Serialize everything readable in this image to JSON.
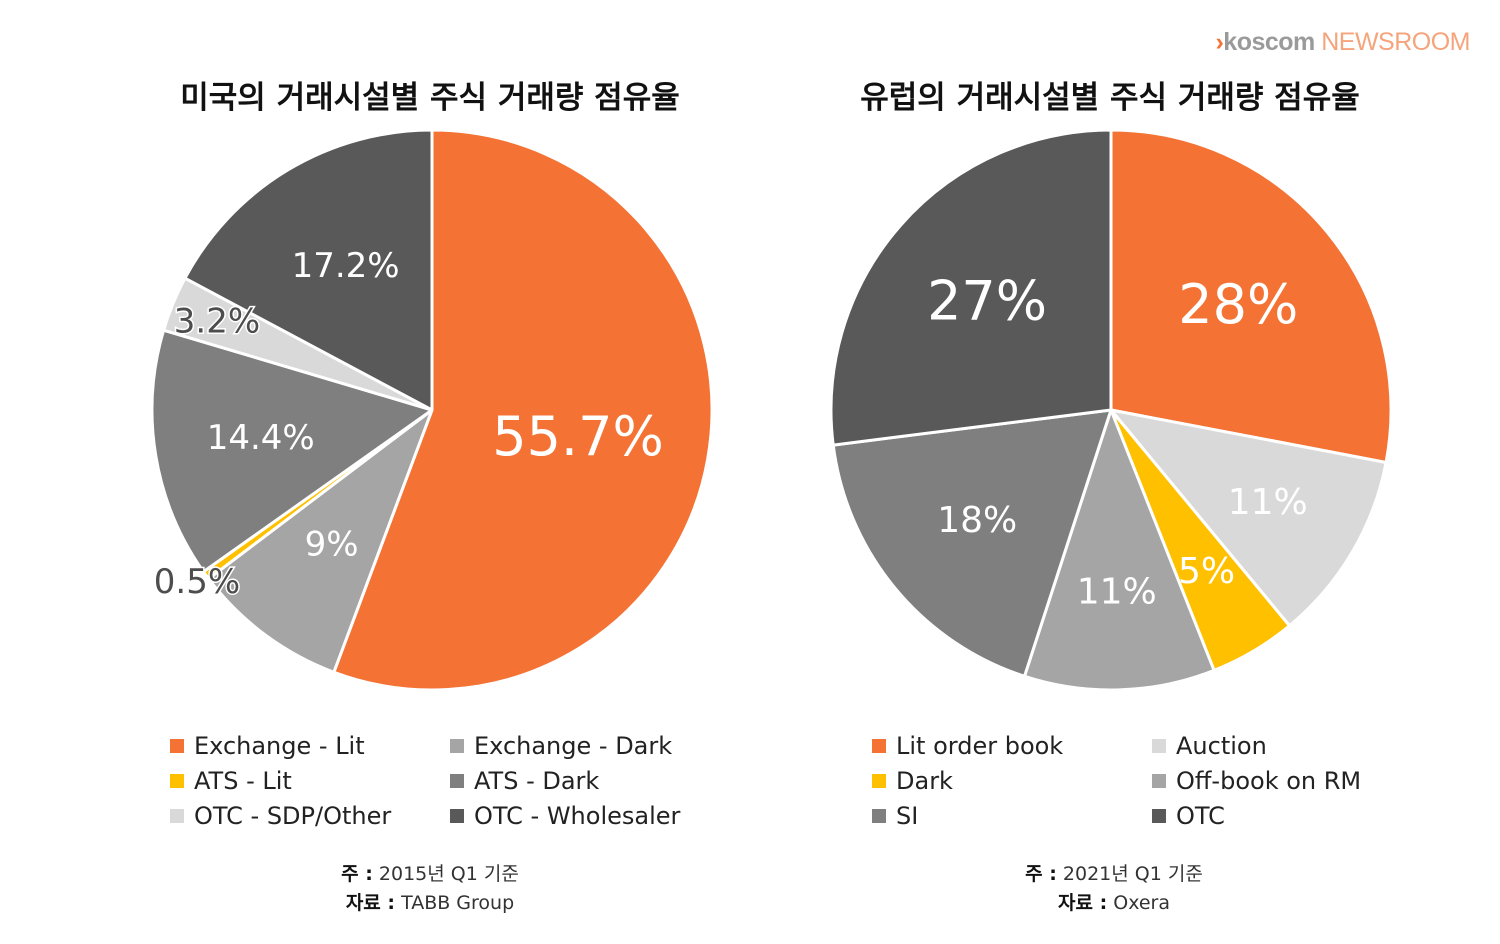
{
  "brand": {
    "prefix": "›",
    "name": "koscom",
    "suffix": " NEWSROOM"
  },
  "chart_data": [
    {
      "type": "pie",
      "title": "미국의 거래시설별 주식 거래량 점유율",
      "slices": [
        {
          "name": "Exchange - Lit",
          "value": 55.7,
          "label": "55.7%",
          "color": "#f37234"
        },
        {
          "name": "Exchange - Dark",
          "value": 9,
          "label": "9%",
          "color": "#a5a5a5"
        },
        {
          "name": "ATS - Lit",
          "value": 0.5,
          "label": "0.5%",
          "color": "#ffc000"
        },
        {
          "name": "ATS - Dark",
          "value": 14.4,
          "label": "14.4%",
          "color": "#7f7f7f"
        },
        {
          "name": "OTC - SDP/Other",
          "value": 3.2,
          "label": "3.2%",
          "color": "#d9d9d9"
        },
        {
          "name": "OTC - Wholesaler",
          "value": 17.2,
          "label": "17.2%",
          "color": "#595959"
        }
      ],
      "legend": [
        {
          "name": "Exchange - Lit",
          "color": "#f37234"
        },
        {
          "name": "Exchange - Dark",
          "color": "#a5a5a5"
        },
        {
          "name": "ATS - Lit",
          "color": "#ffc000"
        },
        {
          "name": "ATS - Dark",
          "color": "#7f7f7f"
        },
        {
          "name": "OTC - SDP/Other",
          "color": "#d9d9d9"
        },
        {
          "name": "OTC - Wholesaler",
          "color": "#595959"
        }
      ],
      "note": {
        "label_1": "주 :",
        "text_1": "2015년 Q1 기준",
        "label_2": "자료 :",
        "text_2": "TABB Group"
      }
    },
    {
      "type": "pie",
      "title": "유럽의 거래시설별 주식 거래량 점유율",
      "slices": [
        {
          "name": "Lit order book",
          "value": 28,
          "label": "28%",
          "color": "#f37234"
        },
        {
          "name": "Auction",
          "value": 11,
          "label": "11%",
          "color": "#d9d9d9"
        },
        {
          "name": "Dark",
          "value": 5,
          "label": "5%",
          "color": "#ffc000"
        },
        {
          "name": "Off-book on RM",
          "value": 11,
          "label": "11%",
          "color": "#a5a5a5"
        },
        {
          "name": "SI",
          "value": 18,
          "label": "18%",
          "color": "#7f7f7f"
        },
        {
          "name": "OTC",
          "value": 27,
          "label": "27%",
          "color": "#595959"
        }
      ],
      "legend": [
        {
          "name": "Lit order book",
          "color": "#f37234"
        },
        {
          "name": "Auction",
          "color": "#d9d9d9"
        },
        {
          "name": "Dark",
          "color": "#ffc000"
        },
        {
          "name": "Off-book on RM",
          "color": "#a5a5a5"
        },
        {
          "name": "SI",
          "color": "#7f7f7f"
        },
        {
          "name": "OTC",
          "color": "#595959"
        }
      ],
      "note": {
        "label_1": "주 :",
        "text_1": "2021년 Q1 기준",
        "label_2": "자료 :",
        "text_2": "Oxera"
      }
    }
  ]
}
